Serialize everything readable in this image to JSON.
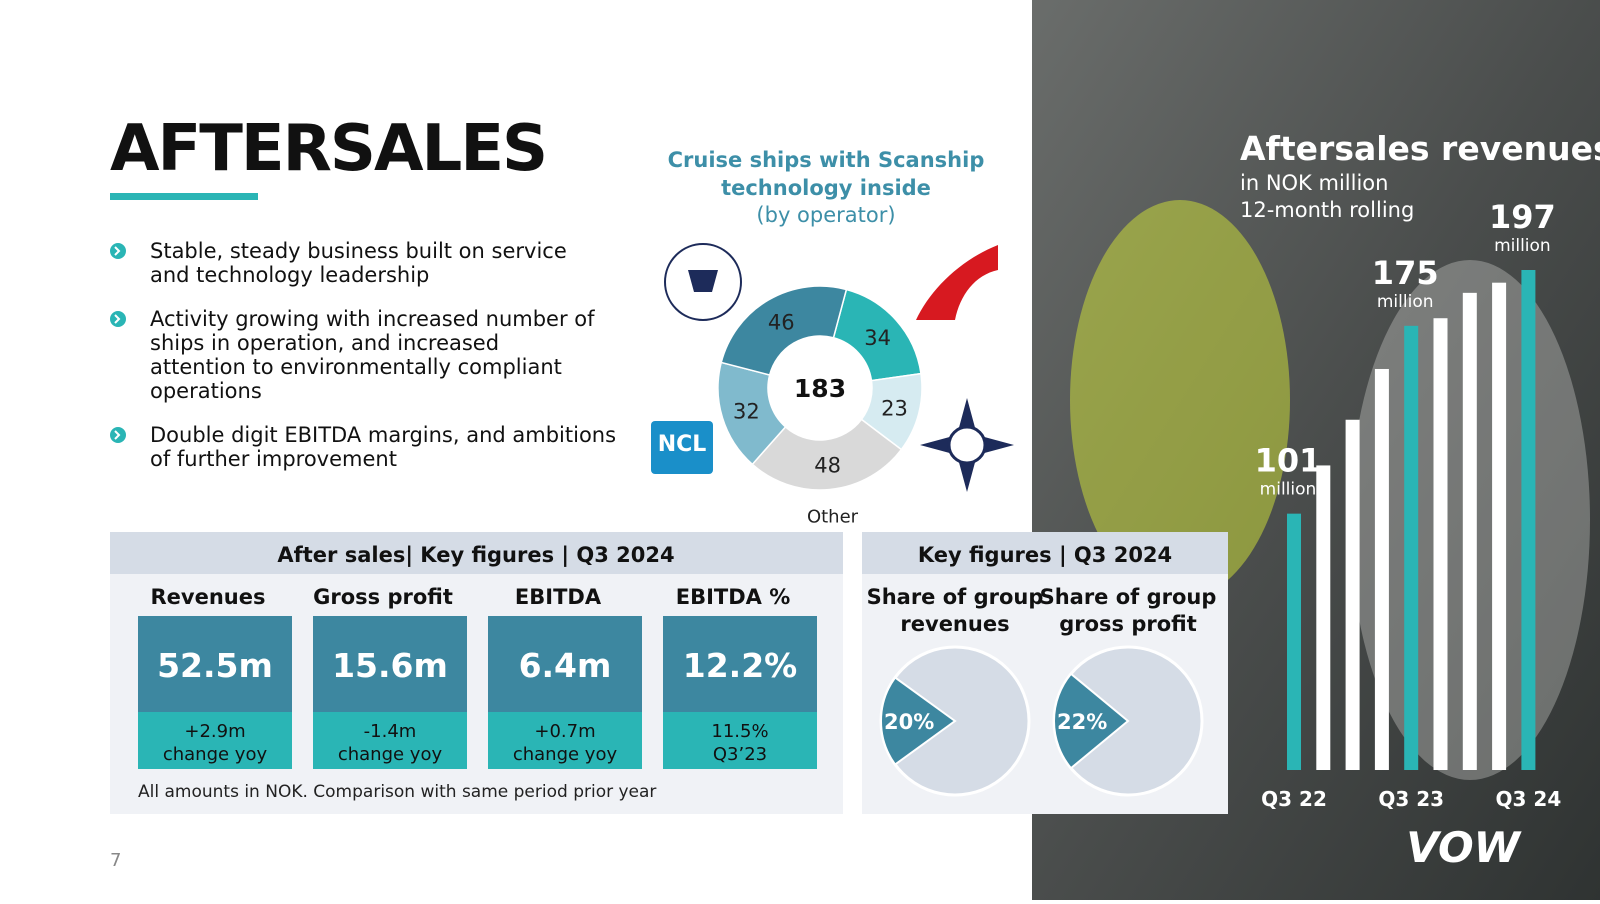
{
  "header": {
    "title": "AFTERSALES",
    "page_number": "7",
    "logo": "VOW"
  },
  "bullets": [
    "Stable, steady business built on service and technology leadership",
    "Activity growing with increased number of ships in operation, and increased attention to environmentally compliant operations",
    "Double digit EBITDA margins, and ambitions of further improvement"
  ],
  "donut": {
    "type": "donut",
    "title_lines": [
      "Cruise ships with Scanship",
      "technology inside"
    ],
    "subtitle": "(by operator)",
    "total": 183,
    "values": [
      34,
      23,
      48,
      32,
      46
    ],
    "labels": [
      null,
      null,
      "Other",
      null,
      null
    ],
    "colors": [
      "#2ab5b5",
      "#d6ebf1",
      "#d9d9d9",
      "#80bacd",
      "#3d87a0"
    ],
    "logo_text": "NCL"
  },
  "key_figures": {
    "title": "After sales| Key figures | Q3 2024",
    "columns": [
      {
        "name": "Revenues",
        "value": "52.5m",
        "change": "+2.9m",
        "note": "change yoy"
      },
      {
        "name": "Gross profit",
        "value": "15.6m",
        "change": "-1.4m",
        "note": "change yoy"
      },
      {
        "name": "EBITDA",
        "value": "6.4m",
        "change": "+0.7m",
        "note": "change yoy"
      },
      {
        "name": "EBITDA %",
        "value": "12.2%",
        "change": "11.5%",
        "note": "Q3’23"
      }
    ],
    "footnote": "All amounts in NOK. Comparison with same period prior year"
  },
  "share": {
    "title": "Key figures | Q3 2024",
    "pies": [
      {
        "title_lines": [
          "Share of group",
          "revenues"
        ],
        "value": 20,
        "value_label": "20%"
      },
      {
        "title_lines": [
          "Share of group",
          "gross profit"
        ],
        "value": 22,
        "value_label": "22%"
      }
    ]
  },
  "chart_data": {
    "type": "bar",
    "title": "Aftersales revenues",
    "subtitle_lines": [
      "in NOK million",
      "12-month rolling"
    ],
    "categories": [
      "Q3 22",
      null,
      null,
      null,
      "Q3 23",
      null,
      null,
      null,
      "Q3 24"
    ],
    "values": [
      101,
      120,
      138,
      158,
      175,
      178,
      188,
      192,
      197
    ],
    "value_labels": [
      "101",
      null,
      null,
      null,
      "175",
      null,
      null,
      null,
      "197"
    ],
    "unit_label": "million",
    "colors": [
      "#2ab5b5",
      "#ffffff",
      "#ffffff",
      "#ffffff",
      "#2ab5b5",
      "#ffffff",
      "#ffffff",
      "#ffffff",
      "#2ab5b5"
    ]
  }
}
